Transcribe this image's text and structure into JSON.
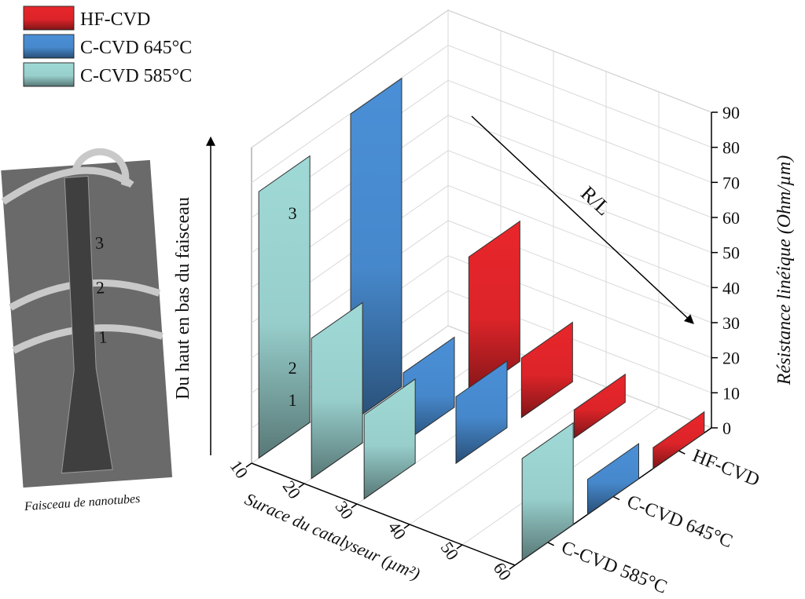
{
  "chart_data": {
    "type": "bar3d",
    "xlabel": "Surace du catalyseur (µm²)",
    "zlabel": "Résistance linéique (Ohm/µm)",
    "xlim": [
      10,
      60
    ],
    "xticks": [
      10,
      20,
      30,
      40,
      50,
      60
    ],
    "zlim": [
      0,
      90
    ],
    "zticks": [
      0,
      10,
      20,
      30,
      40,
      50,
      60,
      70,
      80,
      90
    ],
    "grid": true,
    "series": [
      {
        "name": "HF-CVD",
        "color": "#e8262b",
        "x": [
          25,
          35,
          45,
          60
        ],
        "values": [
          40,
          17,
          8,
          6
        ]
      },
      {
        "name": "C-CVD 645°C",
        "color": "#4a8fd6",
        "x": [
          15,
          25,
          35,
          60
        ],
        "values": [
          88,
          20,
          19,
          10
        ]
      },
      {
        "name": "C-CVD 585°C",
        "color": "#9fd9d6",
        "x": [
          10,
          20,
          30,
          60
        ],
        "values": [
          76,
          40,
          24,
          29
        ]
      }
    ],
    "annotations": {
      "arrow": "R/L",
      "vertical": "Du haut en bas du faisceau",
      "caption": "Faisceau de nanotubes",
      "positions": [
        "1",
        "2",
        "3"
      ]
    }
  }
}
